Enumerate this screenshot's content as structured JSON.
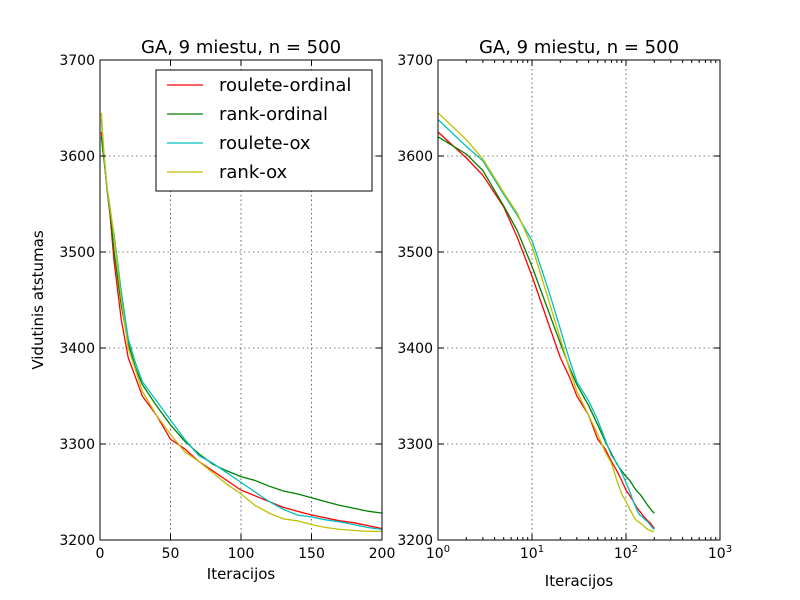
{
  "chart_data": [
    {
      "type": "line",
      "title": "GA, 9 miestu, n = 500",
      "xlabel": "Iteracijos",
      "ylabel": "Vidutinis atstumas",
      "xlim": [
        0,
        200
      ],
      "ylim": [
        3200,
        3700
      ],
      "xticks": [
        0,
        50,
        100,
        150,
        200
      ],
      "yticks": [
        3200,
        3300,
        3400,
        3500,
        3600,
        3700
      ],
      "x_scale": "linear",
      "grid": true,
      "legend": {
        "location": "upper-right"
      },
      "series": [
        {
          "name": "roulete-ordinal",
          "color": "#ff0000",
          "x": [
            1,
            2,
            3,
            5,
            7,
            10,
            15,
            20,
            25,
            30,
            40,
            50,
            60,
            70,
            80,
            90,
            100,
            110,
            120,
            130,
            140,
            150,
            160,
            170,
            180,
            190,
            200
          ],
          "y": [
            3625,
            3610,
            3598,
            3565,
            3540,
            3490,
            3430,
            3390,
            3370,
            3350,
            3330,
            3305,
            3295,
            3282,
            3272,
            3262,
            3252,
            3246,
            3240,
            3234,
            3230,
            3226,
            3223,
            3220,
            3218,
            3215,
            3212
          ]
        },
        {
          "name": "rank-ordinal",
          "color": "#008000",
          "x": [
            1,
            2,
            3,
            5,
            7,
            10,
            15,
            20,
            25,
            30,
            40,
            50,
            60,
            70,
            80,
            90,
            100,
            110,
            120,
            130,
            140,
            150,
            160,
            170,
            180,
            190,
            200
          ],
          "y": [
            3620,
            3606,
            3594,
            3566,
            3544,
            3500,
            3445,
            3405,
            3380,
            3362,
            3340,
            3320,
            3303,
            3290,
            3279,
            3272,
            3266,
            3262,
            3256,
            3251,
            3248,
            3244,
            3240,
            3236,
            3233,
            3230,
            3228
          ]
        },
        {
          "name": "roulete-ox",
          "color": "#00bfbf",
          "x": [
            1,
            2,
            3,
            5,
            7,
            10,
            15,
            20,
            25,
            30,
            40,
            50,
            60,
            70,
            80,
            90,
            100,
            110,
            120,
            130,
            140,
            150,
            160,
            170,
            180,
            190,
            200
          ],
          "y": [
            3638,
            3618,
            3598,
            3565,
            3545,
            3518,
            3460,
            3410,
            3385,
            3365,
            3345,
            3325,
            3305,
            3288,
            3280,
            3270,
            3260,
            3250,
            3240,
            3232,
            3226,
            3224,
            3221,
            3219,
            3216,
            3213,
            3211
          ]
        },
        {
          "name": "rank-ox",
          "color": "#bfbf00",
          "x": [
            1,
            2,
            3,
            5,
            7,
            10,
            15,
            20,
            25,
            30,
            40,
            50,
            60,
            70,
            80,
            90,
            100,
            110,
            120,
            130,
            140,
            150,
            160,
            170,
            180,
            190,
            200
          ],
          "y": [
            3645,
            3620,
            3600,
            3568,
            3548,
            3515,
            3452,
            3400,
            3378,
            3355,
            3330,
            3310,
            3292,
            3282,
            3270,
            3258,
            3248,
            3236,
            3228,
            3222,
            3220,
            3216,
            3213,
            3211,
            3210,
            3209,
            3209
          ]
        }
      ]
    },
    {
      "type": "line",
      "title": "GA, 9 miestu, n = 500",
      "xlabel": "Iteracijos",
      "ylabel": "",
      "xlim": [
        1,
        1000
      ],
      "ylim": [
        3200,
        3700
      ],
      "xticks": [
        1,
        10,
        100,
        1000
      ],
      "xtick_labels": [
        [
          "10",
          "0"
        ],
        [
          "10",
          "1"
        ],
        [
          "10",
          "2"
        ],
        [
          "10",
          "3"
        ]
      ],
      "yticks": [
        3200,
        3300,
        3400,
        3500,
        3600,
        3700
      ],
      "x_scale": "log",
      "grid": true,
      "series": [
        {
          "color": "#ff0000",
          "x": [
            1,
            2,
            3,
            5,
            7,
            10,
            15,
            20,
            25,
            30,
            40,
            50,
            60,
            70,
            80,
            90,
            100,
            110,
            120,
            130,
            140,
            150,
            160,
            170,
            180,
            190,
            200
          ],
          "y": [
            3625,
            3598,
            3580,
            3547,
            3515,
            3475,
            3425,
            3390,
            3370,
            3350,
            3330,
            3305,
            3295,
            3282,
            3272,
            3262,
            3252,
            3246,
            3240,
            3234,
            3230,
            3226,
            3223,
            3220,
            3218,
            3215,
            3212
          ]
        },
        {
          "color": "#008000",
          "x": [
            1,
            2,
            3,
            5,
            7,
            10,
            15,
            20,
            25,
            30,
            40,
            50,
            60,
            70,
            80,
            90,
            100,
            110,
            120,
            130,
            140,
            150,
            160,
            170,
            180,
            190,
            200
          ],
          "y": [
            3620,
            3602,
            3585,
            3548,
            3522,
            3485,
            3438,
            3405,
            3380,
            3362,
            3340,
            3320,
            3303,
            3290,
            3279,
            3272,
            3266,
            3262,
            3256,
            3251,
            3248,
            3244,
            3240,
            3236,
            3233,
            3230,
            3228
          ]
        },
        {
          "color": "#00bfbf",
          "x": [
            1,
            2,
            3,
            5,
            7,
            10,
            15,
            20,
            25,
            30,
            40,
            50,
            60,
            70,
            80,
            90,
            100,
            110,
            120,
            130,
            140,
            150,
            160,
            170,
            180,
            190,
            200
          ],
          "y": [
            3638,
            3610,
            3595,
            3560,
            3538,
            3512,
            3460,
            3420,
            3388,
            3365,
            3345,
            3325,
            3305,
            3288,
            3280,
            3270,
            3260,
            3250,
            3240,
            3232,
            3226,
            3224,
            3221,
            3219,
            3216,
            3213,
            3211
          ]
        },
        {
          "color": "#bfbf00",
          "x": [
            1,
            2,
            3,
            5,
            7,
            10,
            15,
            20,
            25,
            30,
            40,
            50,
            60,
            70,
            80,
            90,
            100,
            110,
            120,
            130,
            140,
            150,
            160,
            170,
            180,
            190,
            200
          ],
          "y": [
            3645,
            3617,
            3597,
            3562,
            3540,
            3506,
            3450,
            3410,
            3378,
            3355,
            3330,
            3310,
            3292,
            3280,
            3262,
            3248,
            3240,
            3232,
            3225,
            3220,
            3218,
            3216,
            3213,
            3211,
            3210,
            3209,
            3209
          ]
        }
      ]
    }
  ]
}
